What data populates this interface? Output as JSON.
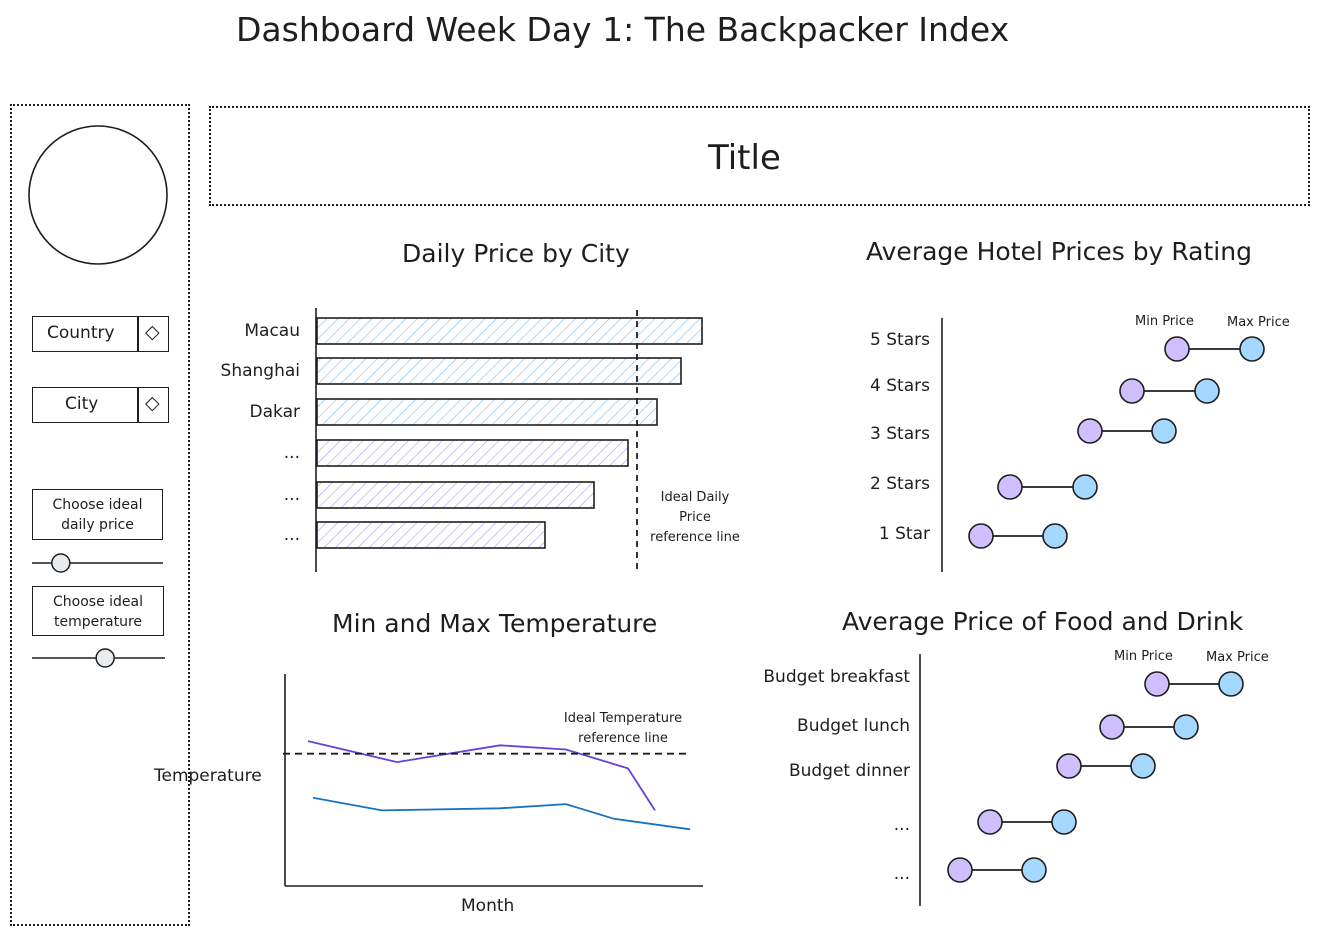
{
  "page": {
    "title": "Dashboard Week Day 1: The Backpacker Index"
  },
  "header_box": {
    "label": "Title"
  },
  "sidebar": {
    "filters": [
      {
        "label": "Country"
      },
      {
        "label": "City"
      }
    ],
    "sliders": [
      {
        "label_line1": "Choose ideal",
        "label_line2": "daily price",
        "value": 0.22
      },
      {
        "label_line1": "Choose ideal",
        "label_line2": "temperature",
        "value": 0.55
      }
    ]
  },
  "daily_price": {
    "title": "Daily Price by City",
    "rows": [
      {
        "label": "Macau",
        "value": 385,
        "color": "#a5d8ff"
      },
      {
        "label": "Shanghai",
        "value": 364,
        "color": "#a5d8ff"
      },
      {
        "label": "Dakar",
        "value": 340,
        "color": "#a5d8ff"
      },
      {
        "label": "...",
        "value": 311,
        "color": "#d0bfff"
      },
      {
        "label": "...",
        "value": 277,
        "color": "#d0bfff"
      },
      {
        "label": "...",
        "value": 228,
        "color": "#d0bfff"
      }
    ],
    "reference_value": 320,
    "reference_label_1": "Ideal Daily",
    "reference_label_2": "Price",
    "reference_label_3": "reference line"
  },
  "hotel_prices": {
    "title": "Average Hotel Prices by Rating",
    "min_label": "Min Price",
    "max_label": "Max Price",
    "rows": [
      {
        "label": "5 Stars",
        "min": 235,
        "max": 310
      },
      {
        "label": "4 Stars",
        "min": 190,
        "max": 265
      },
      {
        "label": "3 Stars",
        "min": 148,
        "max": 222
      },
      {
        "label": "2 Stars",
        "min": 68,
        "max": 143
      },
      {
        "label": "1 Star",
        "min": 39,
        "max": 113
      }
    ],
    "min_color": "#d0bfff",
    "max_color": "#a5d8ff"
  },
  "temperature": {
    "title": "Min and Max Temperature",
    "xlabel": "Month",
    "ylabel": "Temperature",
    "reference_label_1": "Ideal Temperature",
    "reference_label_2": "reference line",
    "reference_value": 63,
    "series": [
      {
        "color": "#6741d9",
        "points": [
          [
            0,
            69
          ],
          [
            1,
            59
          ],
          [
            2,
            67
          ],
          [
            3,
            65
          ],
          [
            4,
            56
          ],
          [
            5,
            36
          ]
        ]
      },
      {
        "color": "#1971c2",
        "points": [
          [
            0,
            42
          ],
          [
            1,
            36
          ],
          [
            2,
            37
          ],
          [
            3,
            39
          ],
          [
            4,
            32
          ],
          [
            5,
            27
          ]
        ]
      }
    ]
  },
  "food_prices": {
    "title": "Average Price of Food and Drink",
    "min_label": "Min Price",
    "max_label": "Max Price",
    "rows": [
      {
        "label": "Budget breakfast",
        "min": 237,
        "max": 311
      },
      {
        "label": "Budget lunch",
        "min": 192,
        "max": 266
      },
      {
        "label": "Budget dinner",
        "min": 149,
        "max": 223
      },
      {
        "label": "...",
        "min": 70,
        "max": 144
      },
      {
        "label": "...",
        "min": 40,
        "max": 114
      }
    ],
    "min_color": "#d0bfff",
    "max_color": "#a5d8ff"
  }
}
